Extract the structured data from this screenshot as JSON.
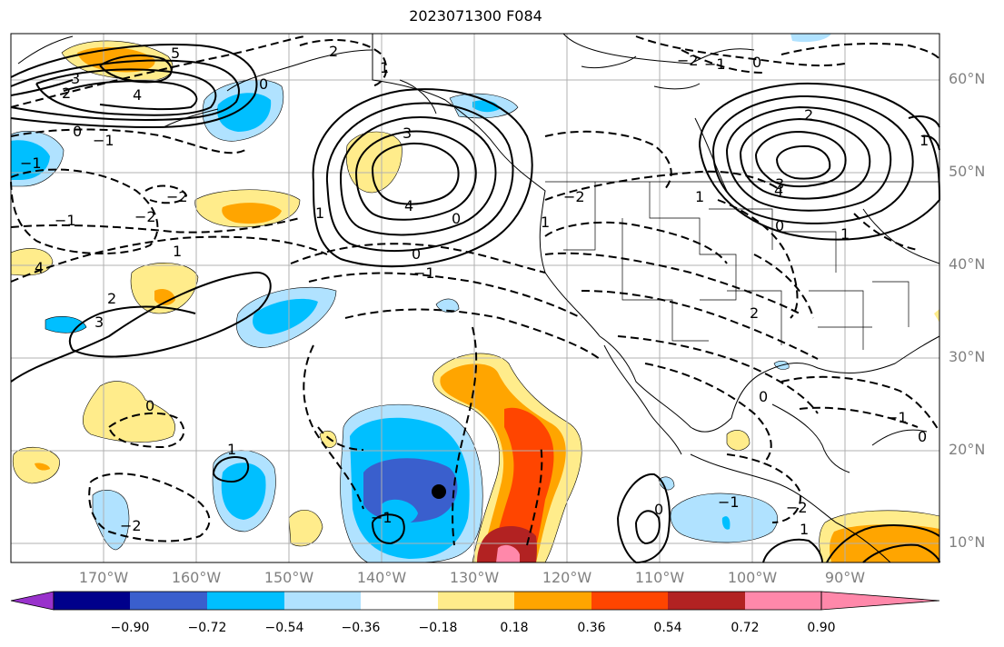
{
  "title": "2023071300 F084",
  "lat_ticks": [
    "60°N",
    "50°N",
    "40°N",
    "30°N",
    "20°N",
    "10°N"
  ],
  "lon_ticks": [
    "170°W",
    "160°W",
    "150°W",
    "140°W",
    "130°W",
    "120°W",
    "110°W",
    "100°W",
    "90°W"
  ],
  "colorbar": {
    "labels": [
      "−0.90",
      "−0.72",
      "−0.54",
      "−0.36",
      "−0.18",
      "0.18",
      "0.36",
      "0.54",
      "0.72",
      "0.90"
    ],
    "colors": [
      "#9932cc",
      "#00008b",
      "#3a5fcd",
      "#00bfff",
      "#b0e2ff",
      "#ffffff",
      "#ffec8b",
      "#ffa500",
      "#ff4500",
      "#b22222",
      "#ff88aa"
    ]
  },
  "contour_labels": [
    "2",
    "1",
    "0",
    "−1",
    "−2",
    "2",
    "3",
    "4",
    "5",
    "−1",
    "4",
    "3",
    "1",
    "0",
    "0",
    "−1",
    "−2",
    "1",
    "2",
    "3",
    "4",
    "0",
    "1",
    "2",
    "0",
    "−1",
    "−2",
    "−1",
    "0",
    "1",
    "2",
    "3",
    "4",
    "−2",
    "0",
    "1",
    "−2",
    "−1",
    "0",
    "−1",
    "−2",
    "1",
    "1",
    "0",
    "−1",
    "0",
    "1"
  ],
  "color_palette": {
    "water": "#ffffff",
    "grid": "#b0b0b0",
    "contour": "#000000"
  }
}
